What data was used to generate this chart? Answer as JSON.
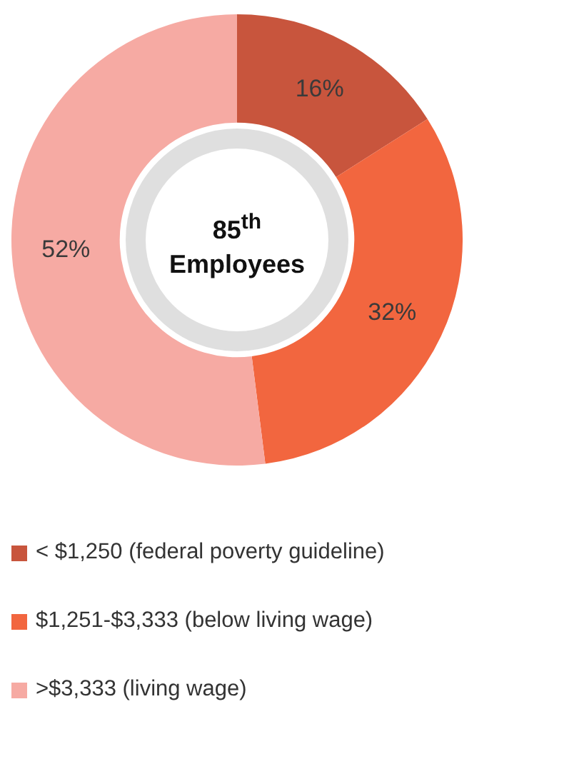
{
  "chart_data": {
    "type": "donut",
    "title": "85$^{th}$ Employees",
    "categories": [
      "< $1,250 (federal poverty guideline)",
      "$1,251-$3,333 (below living wage)",
      ">$3,333 (living wage)"
    ],
    "values": [
      16,
      32,
      52
    ],
    "value_labels": [
      "16%",
      "32%",
      "52%"
    ],
    "colors": [
      "#c8553d",
      "#f2663f",
      "#f6aaa3"
    ],
    "legend": "bottom"
  }
}
